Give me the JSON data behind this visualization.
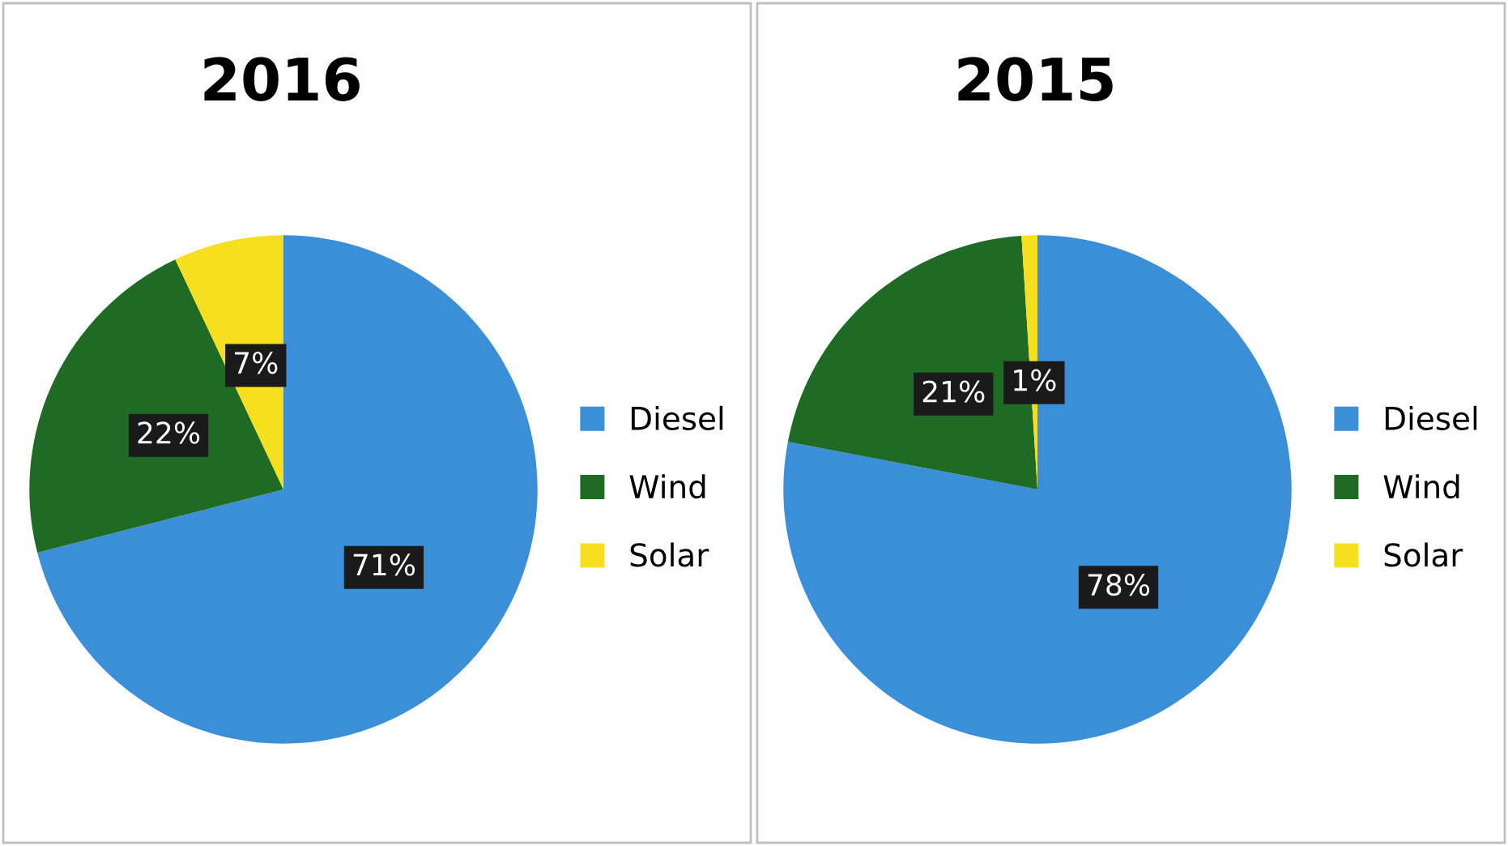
{
  "chart_data": [
    {
      "type": "pie",
      "title": "2016",
      "categories": [
        "Diesel",
        "Wind",
        "Solar"
      ],
      "values": [
        71,
        22,
        7
      ],
      "colors": [
        "#3a8fd8",
        "#1f6b25",
        "#f5df1e"
      ],
      "value_labels": [
        "71%",
        "22%",
        "7%"
      ],
      "legend": "right"
    },
    {
      "type": "pie",
      "title": "2015",
      "categories": [
        "Diesel",
        "Wind",
        "Solar"
      ],
      "values": [
        78,
        21,
        1
      ],
      "colors": [
        "#3a8fd8",
        "#1f6b25",
        "#f5df1e"
      ],
      "value_labels": [
        "78%",
        "21%",
        "1%"
      ],
      "legend": "right"
    }
  ]
}
